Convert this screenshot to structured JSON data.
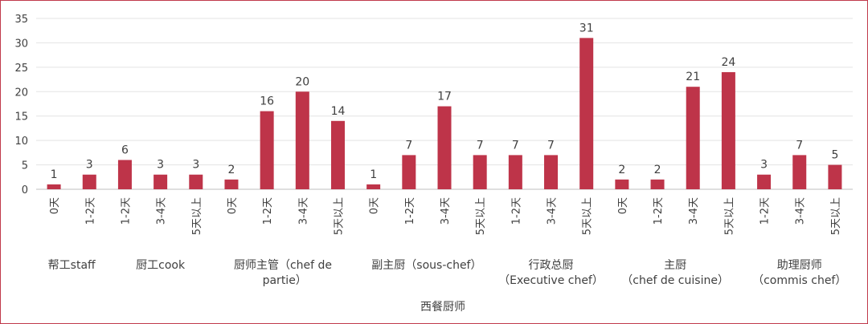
{
  "chart_data": {
    "type": "bar",
    "xlabel": "西餐厨师",
    "ylabel": "",
    "ylim": [
      0,
      35
    ],
    "yticks": [
      0,
      5,
      10,
      15,
      20,
      25,
      30,
      35
    ],
    "grid": true,
    "legend": "none",
    "bar_color": "#be3449",
    "groups": [
      {
        "label": "帮工staff",
        "categories": [
          "0天",
          "1-2天"
        ],
        "values": [
          1,
          3
        ]
      },
      {
        "label": "厨工cook",
        "categories": [
          "1-2天",
          "3-4天",
          "5天以上"
        ],
        "values": [
          6,
          3,
          3
        ]
      },
      {
        "label": "厨师主管（chef de partie）",
        "categories": [
          "0天",
          "1-2天",
          "3-4天",
          "5天以上"
        ],
        "values": [
          2,
          16,
          20,
          14
        ]
      },
      {
        "label": "副主厨（sous-chef）",
        "categories": [
          "0天",
          "1-2天",
          "3-4天",
          "5天以上"
        ],
        "values": [
          1,
          7,
          17,
          7
        ]
      },
      {
        "label": "行政总厨（Executive chef）",
        "categories": [
          "1-2天",
          "3-4天",
          "5天以上"
        ],
        "values": [
          7,
          7,
          31
        ]
      },
      {
        "label": "主厨（chef de cuisine）",
        "categories": [
          "0天",
          "1-2天",
          "3-4天",
          "5天以上"
        ],
        "values": [
          2,
          2,
          21,
          24
        ]
      },
      {
        "label": "助理厨师（commis chef）",
        "categories": [
          "1-2天",
          "3-4天",
          "5天以上"
        ],
        "values": [
          3,
          7,
          5
        ]
      }
    ]
  }
}
